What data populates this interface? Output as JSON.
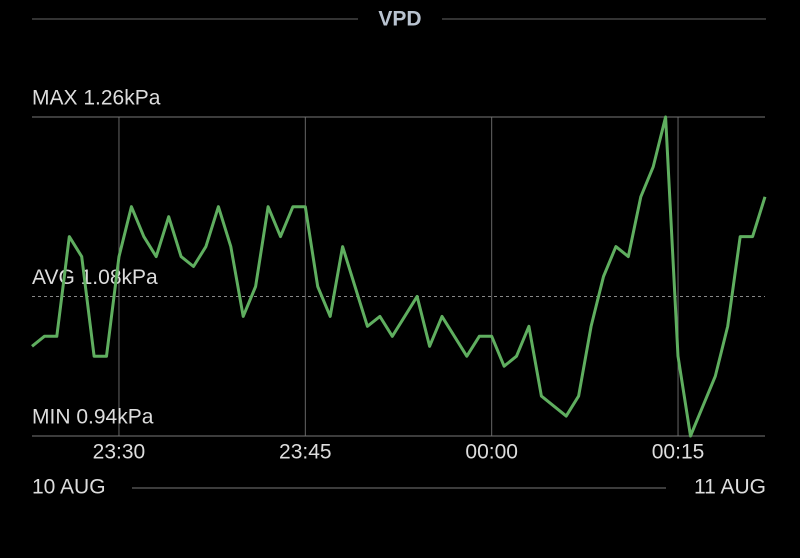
{
  "chart_data": {
    "type": "line",
    "title": "VPD",
    "x": [
      "23:23",
      "23:24",
      "23:25",
      "23:26",
      "23:27",
      "23:28",
      "23:29",
      "23:30",
      "23:31",
      "23:32",
      "23:33",
      "23:34",
      "23:35",
      "23:36",
      "23:37",
      "23:38",
      "23:39",
      "23:40",
      "23:41",
      "23:42",
      "23:43",
      "23:44",
      "23:45",
      "23:46",
      "23:47",
      "23:48",
      "23:49",
      "23:50",
      "23:51",
      "23:52",
      "23:53",
      "23:54",
      "23:55",
      "23:56",
      "23:57",
      "23:58",
      "23:59",
      "00:00",
      "00:01",
      "00:02",
      "00:03",
      "00:04",
      "00:05",
      "00:06",
      "00:07",
      "00:08",
      "00:09",
      "00:10",
      "00:11",
      "00:12",
      "00:13",
      "00:14",
      "00:15",
      "00:16",
      "00:17",
      "00:18",
      "00:19",
      "00:20",
      "00:21",
      "00:22"
    ],
    "series": [
      {
        "name": "VPD",
        "color": "#5fae5f",
        "values": [
          1.03,
          1.04,
          1.04,
          1.14,
          1.12,
          1.02,
          1.02,
          1.12,
          1.17,
          1.14,
          1.12,
          1.16,
          1.12,
          1.11,
          1.13,
          1.17,
          1.13,
          1.06,
          1.09,
          1.17,
          1.14,
          1.17,
          1.17,
          1.09,
          1.06,
          1.13,
          1.09,
          1.05,
          1.06,
          1.04,
          1.06,
          1.08,
          1.03,
          1.06,
          1.04,
          1.02,
          1.04,
          1.04,
          1.01,
          1.02,
          1.05,
          0.98,
          0.97,
          0.96,
          0.98,
          1.05,
          1.1,
          1.13,
          1.12,
          1.18,
          1.21,
          1.26,
          1.02,
          0.94,
          0.97,
          1.0,
          1.05,
          1.14,
          1.14,
          1.18
        ]
      }
    ],
    "xlim": [
      "23:23",
      "00:22"
    ],
    "xticks": [
      "23:30",
      "23:45",
      "00:00",
      "00:15"
    ],
    "ylim": [
      0.94,
      1.26
    ],
    "reference_lines": [
      {
        "value": 1.26,
        "label": "MAX 1.26kPa",
        "style": "solid"
      },
      {
        "value": 1.08,
        "label": "AVG 1.08kPa",
        "style": "dashed"
      },
      {
        "value": 0.94,
        "label": "MIN 0.94kPa",
        "style": "solid"
      }
    ],
    "date_start": "10 AUG",
    "date_end": "11 AUG",
    "grid": true
  }
}
